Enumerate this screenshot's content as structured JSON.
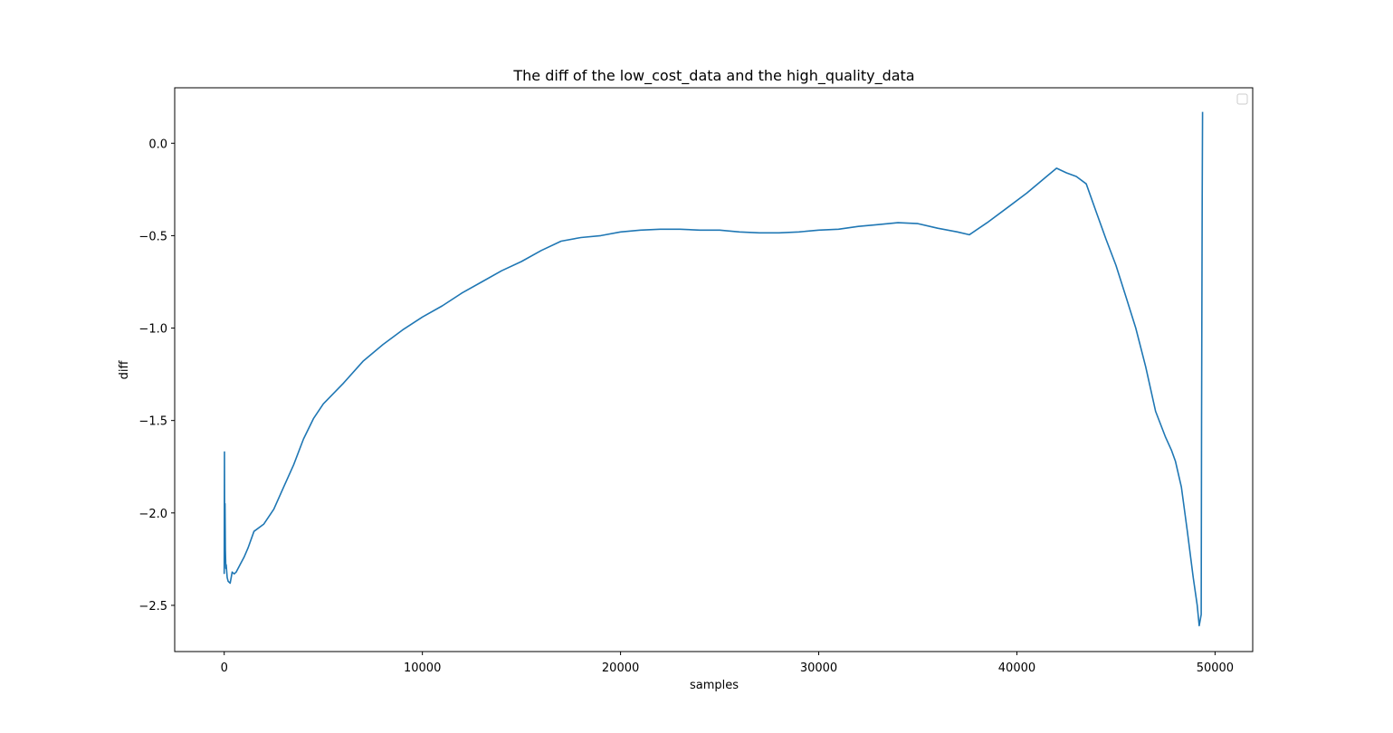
{
  "chart_data": {
    "type": "line",
    "title": "The diff of the low_cost_data and the high_quality_data",
    "xlabel": "samples",
    "ylabel": "diff",
    "xlim": [
      -2500,
      51900
    ],
    "ylim": [
      -2.75,
      0.3
    ],
    "xticks": [
      0,
      10000,
      20000,
      30000,
      40000,
      50000
    ],
    "xtick_labels": [
      "0",
      "10000",
      "20000",
      "30000",
      "40000",
      "50000"
    ],
    "yticks": [
      0.0,
      -0.5,
      -1.0,
      -1.5,
      -2.0,
      -2.5
    ],
    "ytick_labels": [
      "0.0",
      "−0.5",
      "−1.0",
      "−1.5",
      "−2.0",
      "−2.5"
    ],
    "grid": false,
    "legend": {
      "placement": "upper right",
      "entries": []
    },
    "series": [
      {
        "color": "#1f77b4",
        "x": [
          0,
          10,
          20,
          40,
          60,
          80,
          100,
          150,
          200,
          300,
          400,
          500,
          600,
          800,
          1000,
          1200,
          1500,
          2000,
          2500,
          3000,
          3500,
          4000,
          4500,
          5000,
          6000,
          7000,
          8000,
          9000,
          10000,
          11000,
          12000,
          13000,
          14000,
          15000,
          16000,
          17000,
          18000,
          19000,
          20000,
          21000,
          22000,
          23000,
          24000,
          25000,
          26000,
          27000,
          28000,
          29000,
          30000,
          31000,
          32000,
          33000,
          34000,
          35000,
          36000,
          37000,
          37600,
          38500,
          39500,
          40500,
          41500,
          42000,
          42500,
          43000,
          43500,
          44000,
          44500,
          45000,
          45500,
          46000,
          46500,
          47000,
          47500,
          47800,
          48000,
          48300,
          48600,
          48900,
          49100,
          49200,
          49300,
          49320,
          49350,
          49370
        ],
        "y": [
          -2.33,
          -1.67,
          -2.1,
          -1.95,
          -2.2,
          -2.3,
          -2.28,
          -2.35,
          -2.37,
          -2.38,
          -2.32,
          -2.33,
          -2.32,
          -2.28,
          -2.24,
          -2.19,
          -2.1,
          -2.06,
          -1.98,
          -1.86,
          -1.74,
          -1.6,
          -1.49,
          -1.41,
          -1.3,
          -1.18,
          -1.09,
          -1.01,
          -0.94,
          -0.88,
          -0.81,
          -0.75,
          -0.69,
          -0.64,
          -0.58,
          -0.53,
          -0.51,
          -0.5,
          -0.48,
          -0.47,
          -0.465,
          -0.465,
          -0.47,
          -0.47,
          -0.48,
          -0.485,
          -0.485,
          -0.48,
          -0.47,
          -0.465,
          -0.45,
          -0.44,
          -0.43,
          -0.435,
          -0.46,
          -0.48,
          -0.495,
          -0.43,
          -0.35,
          -0.27,
          -0.18,
          -0.135,
          -0.16,
          -0.18,
          -0.22,
          -0.37,
          -0.52,
          -0.66,
          -0.83,
          -1.0,
          -1.21,
          -1.45,
          -1.59,
          -1.66,
          -1.72,
          -1.86,
          -2.1,
          -2.35,
          -2.5,
          -2.61,
          -2.55,
          -1.5,
          -0.3,
          0.17
        ]
      }
    ]
  }
}
